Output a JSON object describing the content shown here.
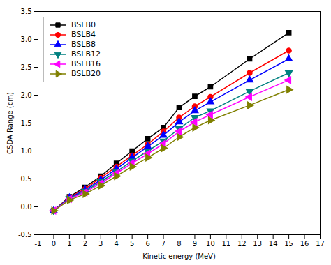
{
  "chart_data": {
    "type": "line",
    "xlabel": "Kinetic energy (MeV)",
    "ylabel": "CSDA Range (cm)",
    "xlim": [
      -1,
      17
    ],
    "ylim": [
      -0.5,
      3.5
    ],
    "xticks": [
      -1,
      0,
      1,
      2,
      3,
      4,
      5,
      6,
      7,
      8,
      9,
      10,
      11,
      12,
      13,
      14,
      15,
      16,
      17
    ],
    "yticks": [
      -0.5,
      {
        "value": 0,
        "label": "0.0"
      },
      0.5,
      {
        "value": 1,
        "label": "1.0"
      },
      1.5,
      {
        "value": 2,
        "label": "2.0"
      },
      2.5,
      {
        "value": 3,
        "label": "3.0"
      },
      3.5
    ],
    "grid": false,
    "legend": "upper left",
    "x": [
      0,
      1,
      2,
      3,
      4,
      5,
      6,
      7,
      8,
      9,
      10,
      12.5,
      15
    ],
    "series": [
      {
        "name": "BSLB0",
        "color": "#000000",
        "marker": "square",
        "values": [
          -0.07,
          0.18,
          0.35,
          0.55,
          0.78,
          1.0,
          1.22,
          1.42,
          1.78,
          1.98,
          2.15,
          2.65,
          3.12
        ]
      },
      {
        "name": "BSLB4",
        "color": "#ff0000",
        "marker": "circle",
        "values": [
          -0.07,
          0.17,
          0.32,
          0.52,
          0.72,
          0.92,
          1.12,
          1.35,
          1.6,
          1.8,
          1.97,
          2.4,
          2.8
        ]
      },
      {
        "name": "BSLB8",
        "color": "#0000ff",
        "marker": "triangle-up",
        "values": [
          -0.07,
          0.16,
          0.3,
          0.48,
          0.68,
          0.88,
          1.08,
          1.28,
          1.52,
          1.72,
          1.88,
          2.27,
          2.65
        ]
      },
      {
        "name": "BSLB12",
        "color": "#008080",
        "marker": "triangle-down",
        "values": [
          -0.07,
          0.15,
          0.28,
          0.45,
          0.63,
          0.82,
          1.0,
          1.18,
          1.4,
          1.6,
          1.72,
          2.07,
          2.4
        ]
      },
      {
        "name": "BSLB16",
        "color": "#ff00ff",
        "marker": "triangle-left",
        "values": [
          -0.07,
          0.14,
          0.26,
          0.42,
          0.6,
          0.78,
          0.95,
          1.13,
          1.35,
          1.52,
          1.65,
          1.97,
          2.27
        ]
      },
      {
        "name": "BSLB20",
        "color": "#808000",
        "marker": "triangle-right",
        "values": [
          -0.07,
          0.12,
          0.23,
          0.38,
          0.55,
          0.72,
          0.88,
          1.05,
          1.25,
          1.42,
          1.55,
          1.82,
          2.1
        ]
      }
    ]
  }
}
